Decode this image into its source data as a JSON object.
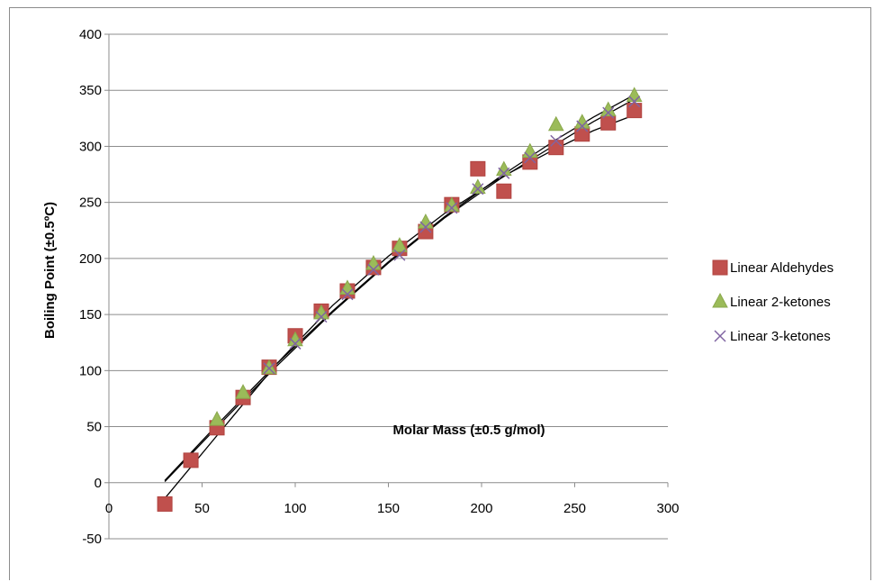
{
  "chart_data": {
    "type": "scatter",
    "title": "",
    "xlabel": "Molar Mass (±0.5 g/mol)",
    "ylabel": "Boiling Point (±0.5ºC)",
    "xlim": [
      0,
      300
    ],
    "ylim": [
      -50,
      400
    ],
    "x_ticks": [
      "0",
      "50",
      "100",
      "150",
      "200",
      "250",
      "300"
    ],
    "y_ticks": [
      "-50",
      "0",
      "50",
      "100",
      "150",
      "200",
      "250",
      "300",
      "350",
      "400"
    ],
    "grid": "horizontal",
    "legend_position": "right",
    "series": [
      {
        "name": "Linear Aldehydes",
        "marker": "square",
        "color": "#c0504d",
        "points": [
          [
            30,
            -19
          ],
          [
            44,
            20
          ],
          [
            58,
            49
          ],
          [
            72,
            76
          ],
          [
            86,
            103
          ],
          [
            100,
            131
          ],
          [
            114,
            153
          ],
          [
            128,
            171
          ],
          [
            142,
            192
          ],
          [
            156,
            209
          ],
          [
            170,
            224
          ],
          [
            184,
            248
          ],
          [
            198,
            280
          ],
          [
            212,
            260
          ],
          [
            226,
            286
          ],
          [
            240,
            299
          ],
          [
            254,
            311
          ],
          [
            268,
            321
          ],
          [
            282,
            332
          ]
        ]
      },
      {
        "name": "Linear 2-ketones",
        "marker": "triangle",
        "color": "#9bbb59",
        "points": [
          [
            58,
            56
          ],
          [
            72,
            80
          ],
          [
            86,
            102
          ],
          [
            100,
            127
          ],
          [
            114,
            151
          ],
          [
            128,
            173
          ],
          [
            142,
            195
          ],
          [
            156,
            211
          ],
          [
            170,
            232
          ],
          [
            184,
            247
          ],
          [
            198,
            263
          ],
          [
            212,
            279
          ],
          [
            226,
            295
          ],
          [
            240,
            319
          ],
          [
            254,
            321
          ],
          [
            268,
            332
          ],
          [
            282,
            345
          ]
        ]
      },
      {
        "name": "Linear 3-ketones",
        "marker": "x",
        "color": "#8064a2",
        "points": [
          [
            86,
            102
          ],
          [
            100,
            124
          ],
          [
            114,
            148
          ],
          [
            128,
            168
          ],
          [
            142,
            190
          ],
          [
            156,
            203
          ],
          [
            170,
            228
          ],
          [
            184,
            245
          ],
          [
            198,
            262
          ],
          [
            212,
            276
          ],
          [
            226,
            290
          ],
          [
            240,
            305
          ],
          [
            254,
            318
          ],
          [
            268,
            330
          ],
          [
            282,
            340
          ]
        ]
      }
    ],
    "trendlines": [
      {
        "color": "#000000",
        "points": [
          [
            30,
            -14
          ],
          [
            60,
            46
          ],
          [
            90,
            106
          ],
          [
            120,
            158
          ],
          [
            150,
            202
          ],
          [
            180,
            240
          ],
          [
            210,
            272
          ],
          [
            240,
            298
          ],
          [
            260,
            314
          ],
          [
            282,
            328
          ]
        ]
      },
      {
        "color": "#000000",
        "points": [
          [
            30,
            2
          ],
          [
            60,
            55
          ],
          [
            90,
            106
          ],
          [
            120,
            153
          ],
          [
            150,
            197
          ],
          [
            180,
            237
          ],
          [
            210,
            273
          ],
          [
            240,
            306
          ],
          [
            260,
            326
          ],
          [
            282,
            346
          ]
        ]
      },
      {
        "color": "#000000",
        "points": [
          [
            30,
            1
          ],
          [
            60,
            53
          ],
          [
            90,
            104
          ],
          [
            120,
            152
          ],
          [
            150,
            196
          ],
          [
            180,
            236
          ],
          [
            210,
            271
          ],
          [
            240,
            302
          ],
          [
            260,
            322
          ],
          [
            282,
            342
          ]
        ]
      }
    ]
  }
}
